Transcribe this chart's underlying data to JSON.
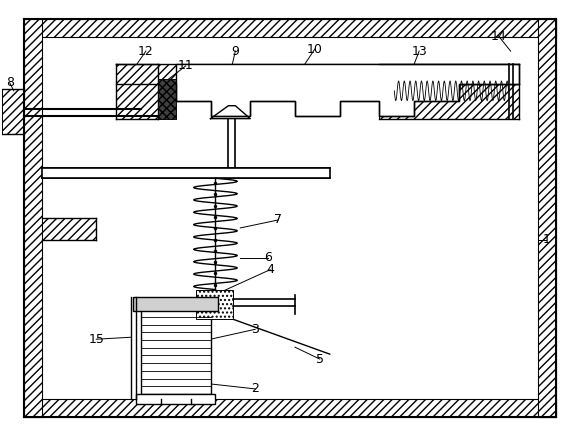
{
  "fig_width": 5.78,
  "fig_height": 4.36,
  "dpi": 100,
  "lc": "#000000",
  "bg": "#ffffff",
  "lw": 1.0,
  "tlw": 0.6,
  "wall_lw": 0.8,
  "label_fs": 9
}
